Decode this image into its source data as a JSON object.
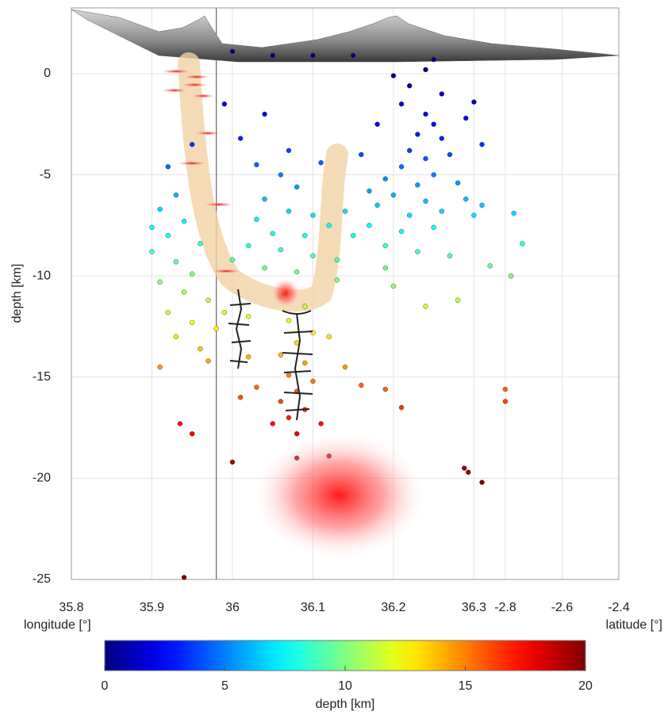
{
  "chart_data": {
    "type": "scatter",
    "ylabel": "depth [km]",
    "xlabel": "longitude [°]",
    "x2label": "latitude [°]",
    "xlim": [
      35.8,
      36.339
    ],
    "xticks": [
      35.8,
      35.9,
      36,
      36.1,
      36.2,
      36.3
    ],
    "x2lim": [
      -2.8,
      -2.4
    ],
    "x2ticks": [
      -2.8,
      -2.6,
      -2.4
    ],
    "ylim": [
      -25,
      3.25
    ],
    "yticks": [
      0,
      -5,
      -10,
      -15,
      -20,
      -25
    ],
    "grid": true,
    "colormap": "jet",
    "vline": 35.98,
    "colorbar": {
      "label": "depth [km]",
      "lim": [
        0,
        20
      ],
      "ticks": [
        0,
        5,
        10,
        15,
        20
      ]
    },
    "x": [
      36.24,
      36.25,
      36.23,
      36.26,
      36.22,
      36.24,
      36.27,
      36.21,
      36.25,
      36.23,
      36.19,
      36.28,
      36.2,
      36.24,
      36.26,
      36.18,
      36.22,
      36.29,
      36.17,
      36.21,
      36.25,
      36.15,
      36.19,
      36.23,
      36.3,
      36.27,
      36.16,
      36.18,
      36.21,
      36.26,
      36.29,
      36.31,
      36.22,
      36.24,
      36.2,
      36.3,
      36.17,
      36.14,
      36.13,
      36.19,
      36.31,
      36.32,
      36.28,
      36.24,
      36.2,
      36.06,
      36.08,
      36.04,
      36.07,
      36.1,
      36.03,
      36.05,
      36.09,
      36.12,
      36.02,
      36.06,
      36.1,
      36.0,
      36.04,
      36.08,
      36.11,
      36.03,
      36.01,
      35.99,
      36.04,
      36.07,
      36.13,
      35.93,
      35.91,
      35.94,
      35.92,
      35.96,
      35.9,
      35.93,
      35.95,
      35.91,
      35.94,
      35.97,
      35.92,
      35.95,
      35.98,
      35.93,
      35.96,
      35.99,
      35.91,
      35.97,
      35.9,
      35.92,
      35.95,
      36.06,
      36.09,
      36.07,
      36.1,
      36.08,
      36.06,
      36.09,
      36.07,
      36.1,
      36.08,
      36.06,
      36.09,
      36.07,
      36.05,
      36.08,
      36.02,
      36.02,
      36.03,
      36.01,
      36.12,
      36.14,
      36.16,
      36.11,
      35.94,
      35.95,
      35.935,
      36.0,
      36.288,
      36.293,
      36.31,
      36.08,
      36.12,
      36.21,
      36.19,
      36.0,
      36.05,
      36.1,
      36.15,
      36.25
    ],
    "y": [
      -2.0,
      -2.5,
      -3.0,
      -3.2,
      -3.8,
      -4.2,
      -4.0,
      -4.6,
      -5.0,
      -5.5,
      -5.2,
      -5.4,
      -6.0,
      -6.3,
      -6.8,
      -6.5,
      -7.0,
      -6.2,
      -7.5,
      -7.8,
      -7.6,
      -8.0,
      -8.5,
      -8.8,
      -7.0,
      -9.0,
      -4.0,
      -2.5,
      -1.5,
      -1.0,
      -2.2,
      -3.5,
      -0.6,
      0.2,
      -0.1,
      -1.4,
      -5.8,
      -6.8,
      -9.2,
      -9.6,
      -6.5,
      -9.5,
      -11.2,
      -11.5,
      -10.5,
      -5.0,
      -5.6,
      -6.2,
      -6.8,
      -7.0,
      -7.2,
      -7.9,
      -8.0,
      -7.5,
      -8.5,
      -8.7,
      -9.0,
      -9.2,
      -9.6,
      -9.8,
      -4.4,
      -4.5,
      -3.2,
      -1.5,
      -2.0,
      -3.8,
      -10.2,
      -6.0,
      -6.7,
      -7.3,
      -8.0,
      -8.4,
      -8.8,
      -9.3,
      -9.9,
      -10.3,
      -10.8,
      -11.2,
      -11.8,
      -12.3,
      -12.6,
      -13.0,
      -13.6,
      -11.8,
      -14.5,
      -14.2,
      -7.6,
      -4.6,
      -3.5,
      -11.0,
      -11.5,
      -12.2,
      -12.8,
      -13.3,
      -13.9,
      -14.3,
      -14.9,
      -15.2,
      -15.7,
      -16.2,
      -16.6,
      -17.0,
      -17.3,
      -17.8,
      -12.0,
      -14.0,
      -15.5,
      -16.0,
      -13.0,
      -14.5,
      -15.4,
      -17.3,
      -24.9,
      -17.8,
      -17.3,
      -19.2,
      -19.5,
      -19.7,
      -20.2,
      -19.0,
      -18.9,
      -16.5,
      -15.6,
      1.1,
      0.9,
      0.9,
      0.9,
      0.7
    ],
    "x2_points": {
      "x": [
        -2.8,
        -2.8,
        -2.78,
        -2.74,
        -2.77
      ],
      "y": [
        -15.6,
        -16.2,
        -10.0,
        -8.4,
        -6.9
      ]
    }
  }
}
